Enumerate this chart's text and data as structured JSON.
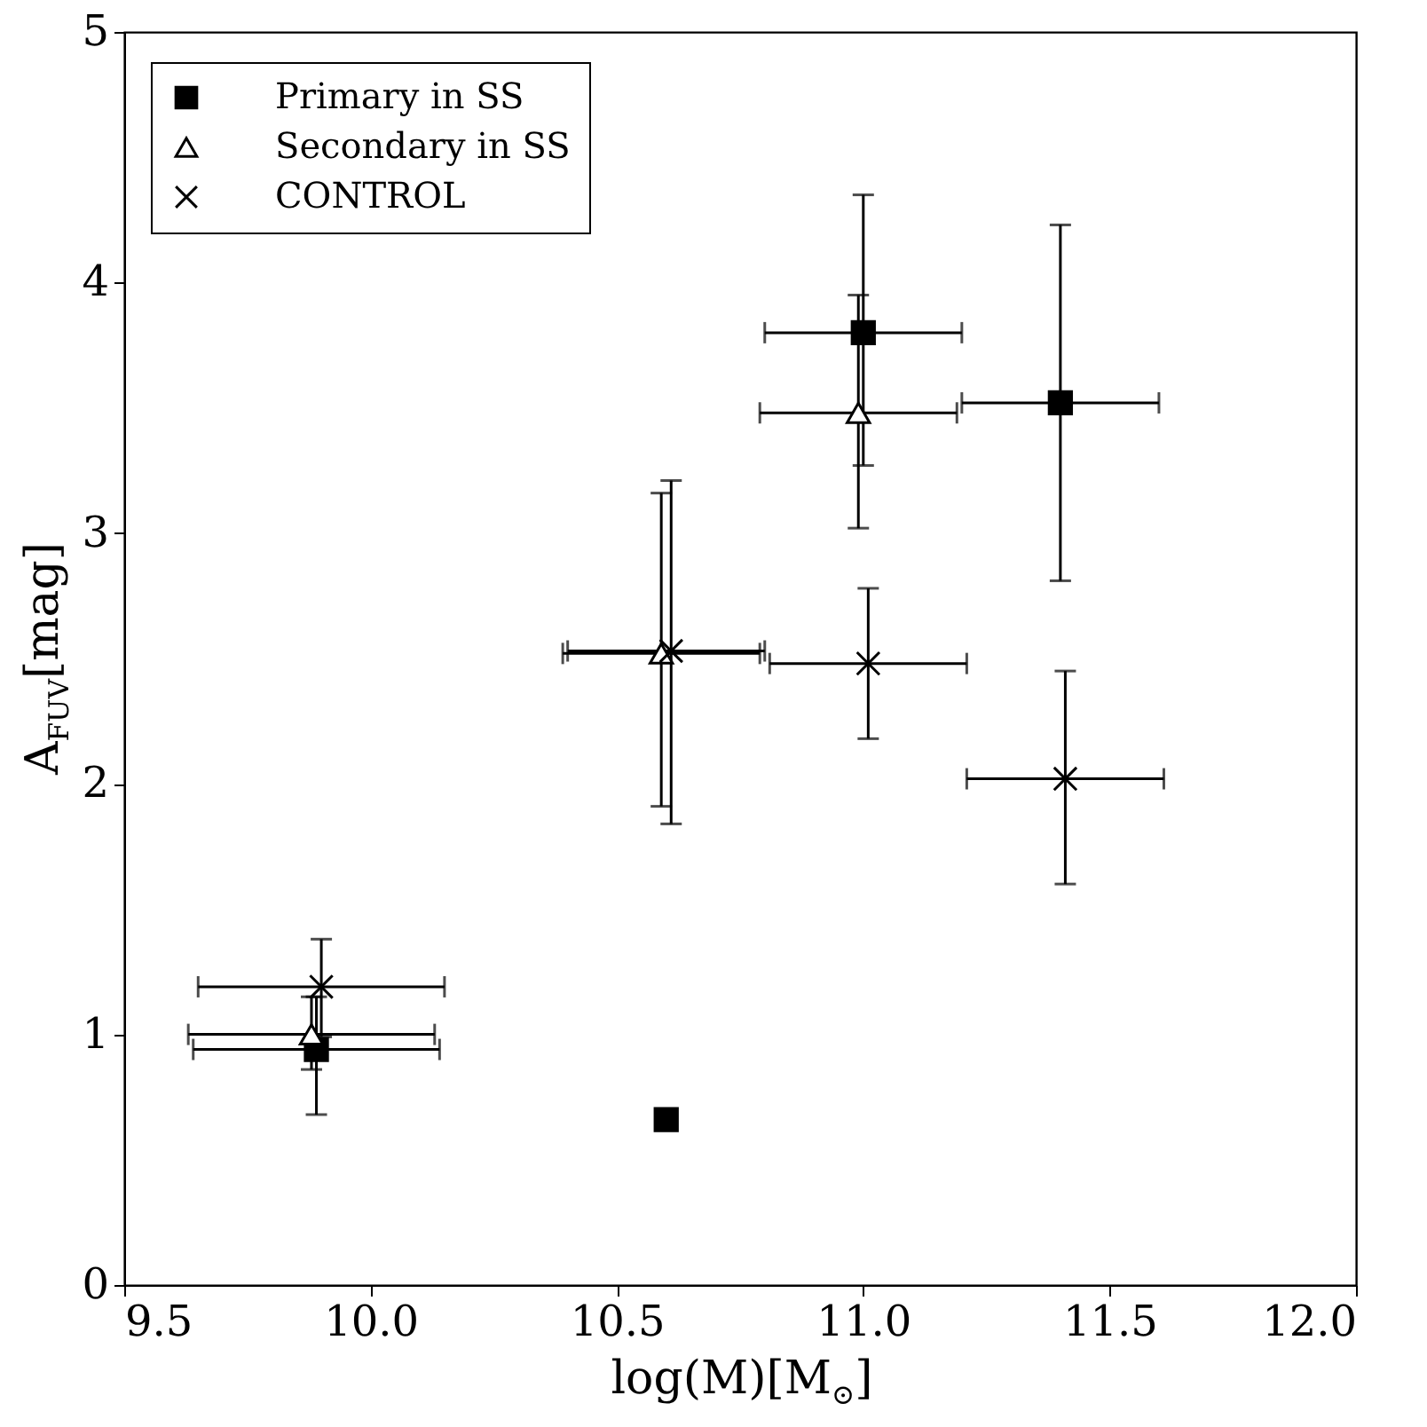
{
  "chart_data": {
    "type": "scatter",
    "xlabel": "log(M)[M$_{⊙}$]",
    "ylabel": "A$_{FUV}$[mag]",
    "xlim": [
      9.5,
      12.0
    ],
    "ylim": [
      0,
      5
    ],
    "xticks": [
      9.5,
      {
        "value": 10,
        "label": "10.0"
      },
      10.5,
      {
        "value": 11,
        "label": "11.0"
      },
      11.5,
      {
        "value": 12,
        "label": "12.0"
      }
    ],
    "yticks": [
      0,
      1,
      2,
      3,
      4,
      5
    ],
    "legend": "top left",
    "grid": false,
    "series": [
      {
        "name": "Primary in SS",
        "color": "#000000",
        "marker": "square",
        "x": [
          9.89,
          10.6,
          11.0,
          11.4
        ],
        "values": [
          0.94,
          0.66,
          3.8,
          3.52
        ],
        "errors": [
          [
            0.68,
            1.15
          ],
          null,
          [
            3.27,
            4.35
          ],
          [
            2.81,
            4.23
          ]
        ],
        "xerrors": [
          [
            9.64,
            10.14
          ],
          null,
          [
            10.8,
            11.2
          ],
          [
            11.2,
            11.6
          ]
        ]
      },
      {
        "name": "Secondary in SS",
        "color": "#000000",
        "marker": "triangle",
        "x": [
          9.88,
          10.59,
          10.99
        ],
        "values": [
          1.0,
          2.52,
          3.48
        ],
        "errors": [
          [
            0.86,
            1.15
          ],
          [
            1.91,
            3.16
          ],
          [
            3.02,
            3.95
          ]
        ],
        "xerrors": [
          [
            9.63,
            10.13
          ],
          [
            10.39,
            10.79
          ],
          [
            10.79,
            11.19
          ]
        ]
      },
      {
        "name": "CONTROL",
        "color": "#000000",
        "marker": "cross",
        "x": [
          9.9,
          10.61,
          11.01,
          11.41
        ],
        "values": [
          1.19,
          2.53,
          2.48,
          2.02
        ],
        "errors": [
          [
            0.99,
            1.38
          ],
          [
            1.84,
            3.21
          ],
          [
            2.18,
            2.78
          ],
          [
            1.6,
            2.45
          ]
        ],
        "xerrors": [
          [
            9.65,
            10.15
          ],
          [
            10.4,
            10.8
          ],
          [
            10.81,
            11.21
          ],
          [
            11.21,
            11.61
          ]
        ]
      }
    ]
  }
}
